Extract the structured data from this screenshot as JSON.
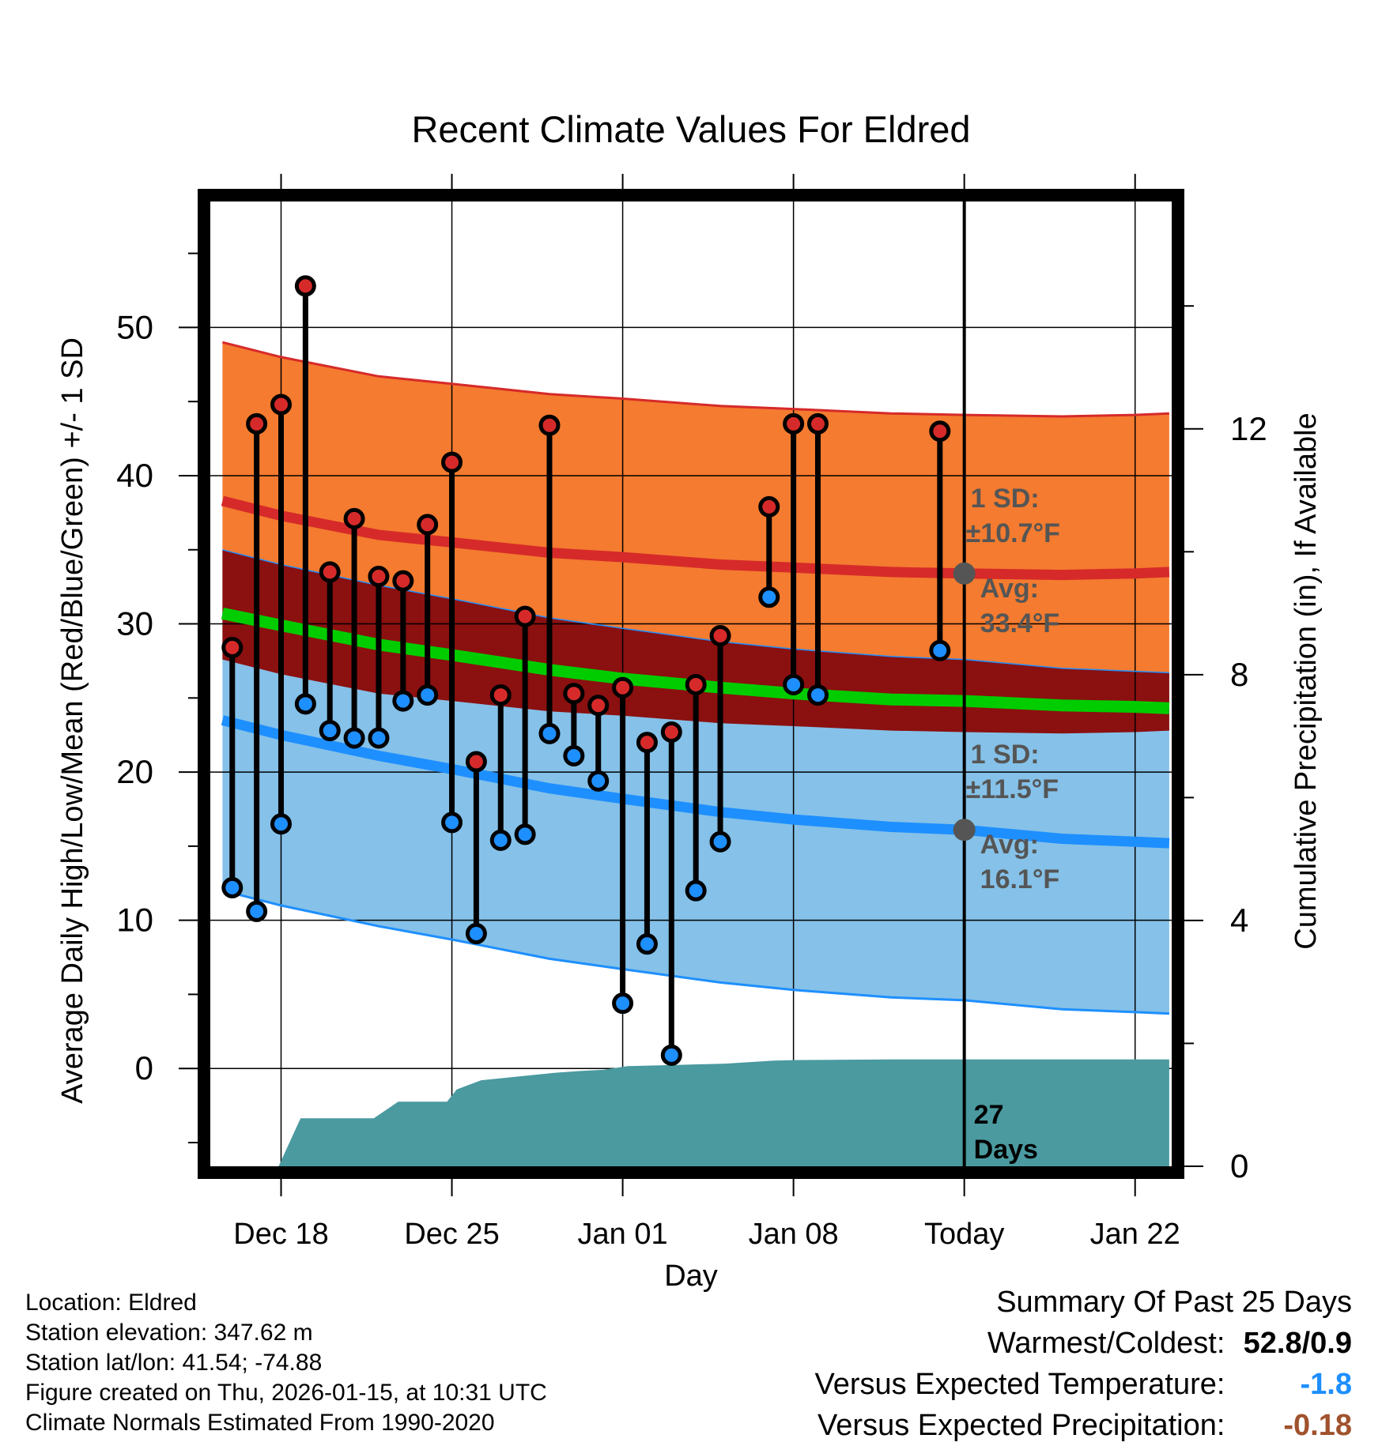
{
  "chart_data": {
    "type": "line",
    "title": "Recent Climate Values For Eldred",
    "xlabel": "Day",
    "ylabel": "Average Daily High/Low/Mean (Red/Blue/Green) +/- 1 SD",
    "y2label": "Cumulative Precipitation (in), If Available",
    "xlim": [
      -4.9,
      34.5
    ],
    "ylim": [
      -6.6,
      58.5
    ],
    "y2lim": [
      0,
      15.7
    ],
    "x_ticks": [
      {
        "x": -2,
        "label": "Dec 18"
      },
      {
        "x": 5,
        "label": "Dec 25"
      },
      {
        "x": 12,
        "label": "Jan 01"
      },
      {
        "x": 19,
        "label": "Jan 08"
      },
      {
        "x": 26,
        "label": "Today"
      },
      {
        "x": 33,
        "label": "Jan 22"
      }
    ],
    "y_ticks": [
      0,
      10,
      20,
      30,
      40,
      50
    ],
    "y2_ticks": [
      0,
      4,
      8,
      12
    ],
    "today_x": 26,
    "days_label": [
      "27",
      "Days"
    ],
    "colors": {
      "high": "#d62a2a",
      "low": "#1e8fff",
      "mean": "#00cc00",
      "high_band": "#f47b2f",
      "low_band": "#85c1e8",
      "overlap_band": "#8b1010",
      "precip": "#4a9aa0",
      "annotation": "#555555"
    },
    "normals": {
      "x": [
        -4.4,
        -2,
        2,
        5,
        9,
        12,
        16,
        19,
        23,
        26,
        30,
        33,
        34.4
      ],
      "high_mean": [
        38.3,
        37.3,
        36.0,
        35.5,
        34.8,
        34.5,
        34.0,
        33.8,
        33.5,
        33.4,
        33.3,
        33.4,
        33.5
      ],
      "high_sd": 10.7,
      "low_mean": [
        23.5,
        22.5,
        21.1,
        20.2,
        18.9,
        18.2,
        17.3,
        16.8,
        16.3,
        16.1,
        15.5,
        15.3,
        15.2
      ],
      "low_sd": 11.5,
      "avg_mean": [
        30.7,
        29.9,
        28.6,
        27.9,
        26.9,
        26.3,
        25.7,
        25.3,
        24.9,
        24.8,
        24.5,
        24.4,
        24.3
      ]
    },
    "annotations": {
      "high": {
        "sd_label": "1 SD:",
        "sd_value": "±10.7°F",
        "avg_label": "Avg:",
        "avg_value": "33.4°F",
        "value": 33.4
      },
      "low": {
        "sd_label": "1 SD:",
        "sd_value": "±11.5°F",
        "avg_label": "Avg:",
        "avg_value": "16.1°F",
        "value": 16.1
      }
    },
    "series": [
      {
        "name": "Daily High",
        "x": [
          -4,
          -3,
          -2,
          -1,
          0,
          1,
          2,
          3,
          4,
          5,
          6,
          7,
          8,
          9,
          10,
          11,
          12,
          13,
          14,
          15,
          16,
          18,
          19,
          20,
          25
        ],
        "values": [
          28.4,
          43.5,
          44.8,
          52.8,
          33.5,
          37.1,
          33.2,
          32.9,
          36.7,
          40.9,
          20.7,
          25.2,
          30.5,
          43.4,
          25.3,
          24.5,
          25.7,
          22.0,
          22.7,
          25.9,
          29.2,
          37.9,
          43.5,
          43.5,
          43.0
        ]
      },
      {
        "name": "Daily Low",
        "x": [
          -4,
          -3,
          -2,
          -1,
          0,
          1,
          2,
          3,
          4,
          5,
          6,
          7,
          8,
          9,
          10,
          11,
          12,
          13,
          14,
          15,
          16,
          18,
          19,
          20,
          25
        ],
        "values": [
          12.2,
          10.6,
          16.5,
          24.6,
          22.8,
          22.3,
          22.3,
          24.8,
          25.2,
          16.6,
          9.1,
          15.4,
          15.8,
          22.6,
          21.1,
          19.4,
          4.4,
          8.4,
          0.9,
          12.0,
          15.3,
          31.8,
          25.9,
          25.2,
          28.2
        ]
      },
      {
        "name": "Cumulative Precipitation",
        "axis": "y2",
        "x": [
          -4.4,
          -2.1,
          -1.2,
          1.8,
          2.8,
          3.8,
          4.8,
          5.2,
          6.2,
          7.2,
          8.2,
          9.2,
          10.2,
          11.2,
          12.2,
          13.2,
          14.2,
          16.2,
          18.2,
          19.2,
          23,
          26,
          34.4
        ],
        "values": [
          0,
          0,
          0.78,
          0.78,
          1.05,
          1.05,
          1.05,
          1.25,
          1.4,
          1.44,
          1.48,
          1.52,
          1.55,
          1.57,
          1.63,
          1.64,
          1.65,
          1.67,
          1.72,
          1.73,
          1.74,
          1.74,
          1.74
        ]
      }
    ]
  },
  "footer": {
    "location": "Location: Eldred",
    "elevation": "Station elevation: 347.62 m",
    "latlon": "Station lat/lon: 41.54; -74.88",
    "created": "Figure created on Thu, 2026-01-15, at 10:31 UTC",
    "normals": "Climate Normals Estimated From 1990-2020"
  },
  "summary": {
    "title": "Summary Of Past 25 Days",
    "warmest_label": "Warmest/Coldest:",
    "warmest_value": "52.8/0.9",
    "temp_label": "Versus Expected Temperature:",
    "temp_value": "-1.8",
    "temp_color": "#1e8fff",
    "precip_label": "Versus Expected Precipitation:",
    "precip_value": "-0.18",
    "precip_color": "#a0522d"
  }
}
